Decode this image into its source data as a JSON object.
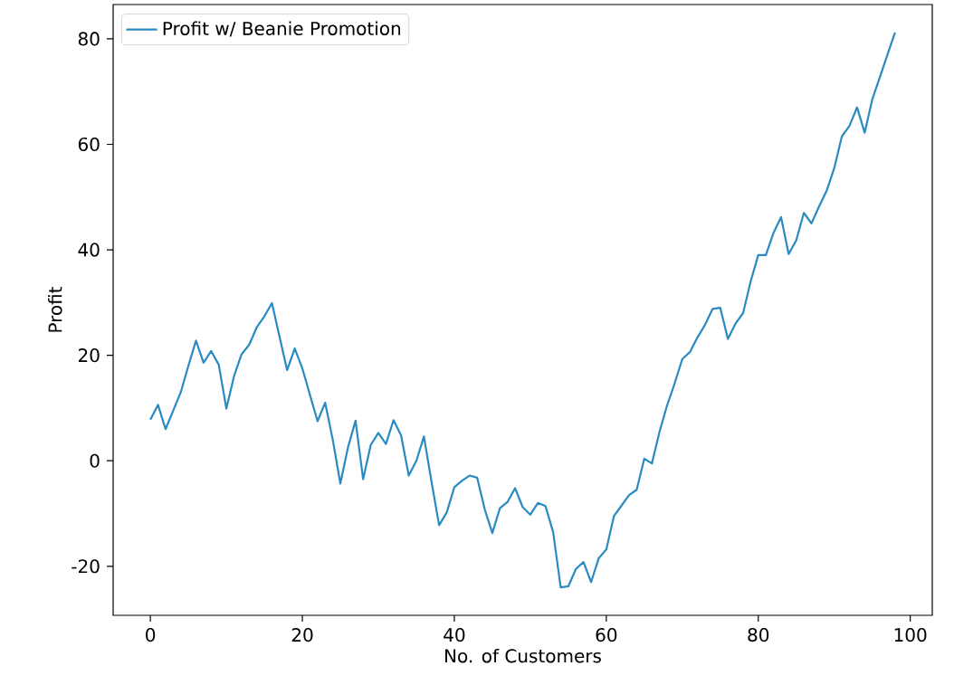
{
  "chart_data": {
    "type": "line",
    "xlabel": "No. of Customers",
    "ylabel": "Profit",
    "x": [
      0,
      1,
      2,
      3,
      4,
      5,
      6,
      7,
      8,
      9,
      10,
      11,
      12,
      13,
      14,
      15,
      16,
      17,
      18,
      19,
      20,
      21,
      22,
      23,
      24,
      25,
      26,
      27,
      28,
      29,
      30,
      31,
      32,
      33,
      34,
      35,
      36,
      37,
      38,
      39,
      40,
      41,
      42,
      43,
      44,
      45,
      46,
      47,
      48,
      49,
      50,
      51,
      52,
      53,
      54,
      55,
      56,
      57,
      58,
      59,
      60,
      61,
      62,
      63,
      64,
      65,
      66,
      67,
      68,
      69,
      70,
      71,
      72,
      73,
      74,
      75,
      76,
      77,
      78,
      79,
      80,
      81,
      82,
      83,
      84,
      85,
      86,
      87,
      88,
      89,
      90,
      91,
      92,
      93,
      94,
      95,
      96,
      97,
      98
    ],
    "series": [
      {
        "name": "Profit w/ Beanie Promotion",
        "color": "#2a8ac2",
        "values": [
          7.8,
          10.6,
          6,
          9.5,
          13,
          18,
          22.8,
          18.6,
          20.8,
          18.2,
          9.9,
          16,
          20.2,
          22,
          25.3,
          27.4,
          29.9,
          23.5,
          17.2,
          21.3,
          17.5,
          12.5,
          7.5,
          11,
          4,
          -4.3,
          2.5,
          7.6,
          -3.5,
          3,
          5.3,
          3.2,
          7.7,
          4.8,
          -2.8,
          0,
          4.6,
          -4,
          -12.2,
          -9.8,
          -5,
          -3.8,
          -2.8,
          -3.2,
          -9.2,
          -13.7,
          -9,
          -7.8,
          -5.2,
          -8.8,
          -10.2,
          -8,
          -8.6,
          -13.5,
          -24,
          -23.8,
          -20.5,
          -19.2,
          -23,
          -18.5,
          -16.8,
          -10.5,
          -8.5,
          -6.5,
          -5.5,
          0.4,
          -0.5,
          5.5,
          10.5,
          14.7,
          19.3,
          20.6,
          23.4,
          25.8,
          28.8,
          29,
          23.1,
          26,
          28,
          34,
          39,
          39,
          43.2,
          46.2,
          39.2,
          41.8,
          47,
          45,
          48.2,
          51.2,
          55.5,
          61.5,
          63.5,
          67,
          62.2,
          68.5,
          72.7,
          77,
          81.2
        ]
      }
    ],
    "xlim": [
      -4.9,
      102.9
    ],
    "ylim": [
      -29.3,
      86.5
    ],
    "xticks": [
      0,
      20,
      40,
      60,
      80,
      100
    ],
    "yticks": [
      -20,
      0,
      20,
      40,
      60,
      80
    ],
    "legend": "top left",
    "grid": false,
    "marker": "none",
    "line_style": "solid"
  }
}
